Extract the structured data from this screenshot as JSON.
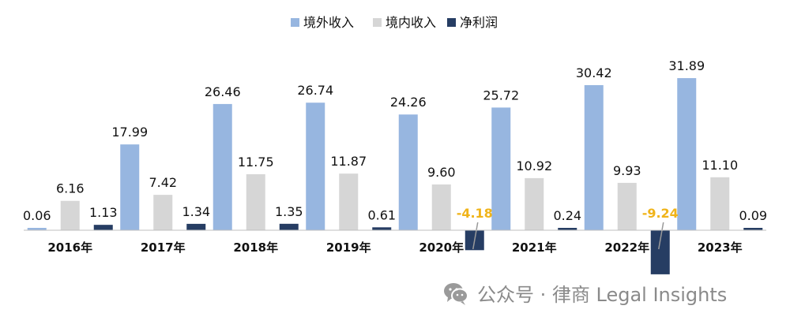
{
  "chart_data": {
    "type": "bar",
    "title": "",
    "xlabel": "",
    "ylabel": "",
    "legend_position": "top-center",
    "grid": false,
    "categories": [
      "2016年",
      "2017年",
      "2018年",
      "2019年",
      "2020年",
      "2021年",
      "2022年",
      "2023年"
    ],
    "series": [
      {
        "name": "境外收入",
        "color": "#97b6e0",
        "values": [
          0.06,
          17.99,
          26.46,
          26.74,
          24.26,
          25.72,
          30.42,
          31.89
        ],
        "labels": [
          "0.06",
          "17.99",
          "26.46",
          "26.74",
          "24.26",
          "25.72",
          "30.42",
          "31.89"
        ]
      },
      {
        "name": "境内收入",
        "color": "#d6d6d6",
        "values": [
          6.16,
          7.42,
          11.75,
          11.87,
          9.6,
          10.92,
          9.93,
          11.1
        ],
        "labels": [
          "6.16",
          "7.42",
          "11.75",
          "11.87",
          "9.60",
          "10.92",
          "9.93",
          "11.10"
        ]
      },
      {
        "name": "净利润",
        "color": "#263d63",
        "values": [
          1.13,
          1.34,
          1.35,
          0.61,
          -4.18,
          0.24,
          -9.24,
          0.09
        ],
        "labels": [
          "1.13",
          "1.34",
          "1.35",
          "0.61",
          "-4.18",
          "0.24",
          "-9.24",
          "0.09"
        ]
      }
    ],
    "negative_label_color": "#f0b41a"
  },
  "watermark": {
    "icon": "wechat-icon",
    "text": "公众号 · 律商 Legal Insights"
  }
}
